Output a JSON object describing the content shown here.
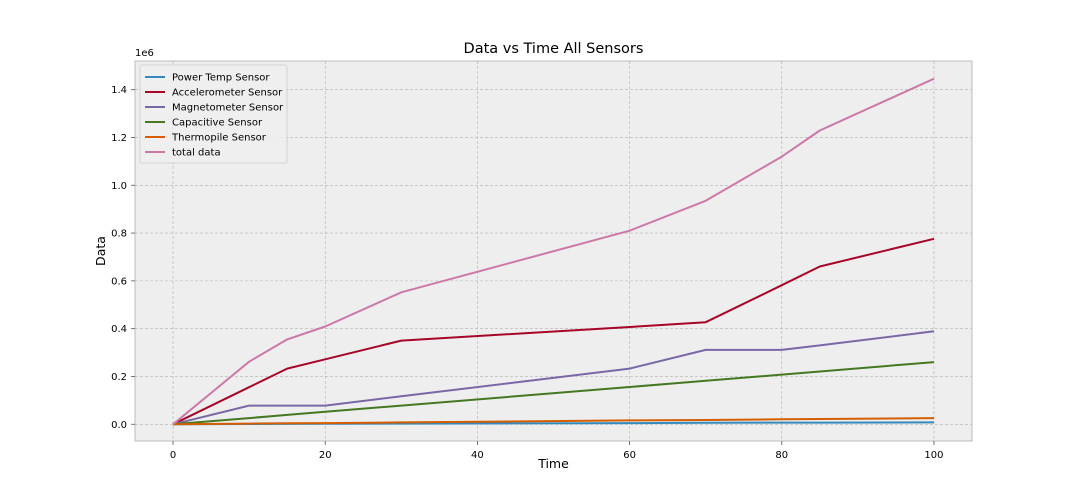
{
  "chart_data": {
    "type": "line",
    "title": "Data vs Time All Sensors",
    "xlabel": "Time",
    "ylabel": "Data",
    "y_offset_label": "1e6",
    "xlim": [
      -5,
      105
    ],
    "ylim": [
      -0.07,
      1.52
    ],
    "x_ticks": [
      0,
      20,
      40,
      60,
      80,
      100
    ],
    "x_tick_labels": [
      "0",
      "20",
      "40",
      "60",
      "80",
      "100"
    ],
    "y_ticks": [
      0,
      0.2,
      0.4,
      0.6,
      0.8,
      1.0,
      1.2,
      1.4
    ],
    "y_tick_labels": [
      "0.0",
      "0.2",
      "0.4",
      "0.6",
      "0.8",
      "1.0",
      "1.2",
      "1.4"
    ],
    "grid": true,
    "legend_position": "top-left",
    "series": [
      {
        "name": "Power Temp Sensor",
        "color": "#348abd",
        "x": [
          0,
          10,
          15,
          20,
          30,
          60,
          70,
          80,
          85,
          100
        ],
        "values": [
          0,
          0.001,
          0.0015,
          0.002,
          0.003,
          0.005,
          0.006,
          0.007,
          0.007,
          0.008
        ]
      },
      {
        "name": "Accelerometer Sensor",
        "color": "#a60628",
        "x": [
          0,
          10,
          15,
          20,
          30,
          60,
          70,
          80,
          85,
          100
        ],
        "values": [
          0,
          0.155,
          0.233,
          0.272,
          0.35,
          0.407,
          0.427,
          0.582,
          0.66,
          0.776
        ]
      },
      {
        "name": "Magnetometer Sensor",
        "color": "#7a68a6",
        "x": [
          0,
          10,
          15,
          20,
          30,
          60,
          70,
          80,
          85,
          100
        ],
        "values": [
          0,
          0.078,
          0.078,
          0.078,
          0.117,
          0.233,
          0.311,
          0.311,
          0.33,
          0.389
        ]
      },
      {
        "name": "Capacitive Sensor",
        "color": "#467821",
        "x": [
          0,
          10,
          15,
          20,
          30,
          60,
          70,
          80,
          85,
          100
        ],
        "values": [
          0,
          0.026,
          0.039,
          0.052,
          0.078,
          0.156,
          0.182,
          0.208,
          0.221,
          0.26
        ]
      },
      {
        "name": "Thermopile Sensor",
        "color": "#d55e00",
        "x": [
          0,
          10,
          15,
          20,
          30,
          60,
          70,
          80,
          85,
          100
        ],
        "values": [
          0,
          0.003,
          0.004,
          0.005,
          0.008,
          0.016,
          0.018,
          0.021,
          0.022,
          0.026
        ]
      },
      {
        "name": "total data",
        "color": "#cc79a7",
        "x": [
          0,
          10,
          15,
          20,
          30,
          60,
          70,
          80,
          85,
          100
        ],
        "values": [
          0,
          0.262,
          0.355,
          0.409,
          0.552,
          0.81,
          0.935,
          1.12,
          1.229,
          1.446
        ]
      }
    ]
  }
}
